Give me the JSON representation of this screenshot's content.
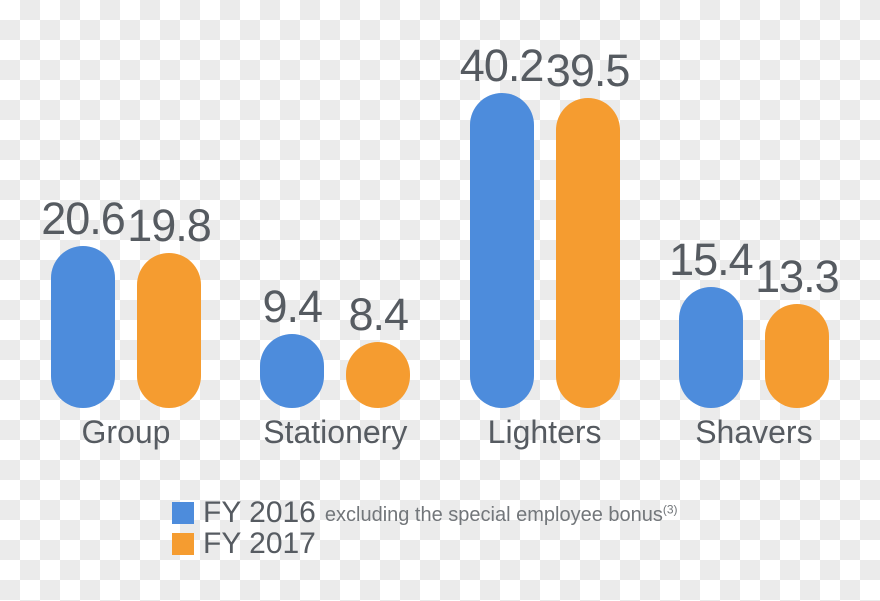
{
  "chart_data": {
    "type": "bar",
    "title": "",
    "xlabel": "",
    "ylabel": "",
    "categories": [
      "Group",
      "Stationery",
      "Lighters",
      "Shavers"
    ],
    "series": [
      {
        "name": "FY 2016",
        "color": "#4d8cdc",
        "values": [
          20.6,
          9.4,
          40.2,
          15.4
        ]
      },
      {
        "name": "FY 2017",
        "color": "#f59c30",
        "values": [
          19.8,
          8.4,
          39.5,
          13.3
        ]
      }
    ],
    "value_labels": true,
    "value_label_format": "0.0",
    "ylim": [
      0,
      42
    ],
    "grid": false,
    "axes_visible": false,
    "legend_position": "bottom-left",
    "bar_style": "rounded-pill"
  },
  "legend": {
    "items": [
      {
        "label": "FY 2016",
        "note": "excluding the special employee bonus",
        "note_sup": "(3)",
        "color": "#4d8cdc"
      },
      {
        "label": "FY 2017",
        "note": "",
        "note_sup": "",
        "color": "#f59c30"
      }
    ]
  },
  "colors": {
    "blue": "#4d8cdc",
    "orange": "#f59c30",
    "label_text": "#565b61",
    "note_text": "#72767a",
    "checker_light": "#ffffff",
    "checker_dark": "#ebebeb"
  }
}
